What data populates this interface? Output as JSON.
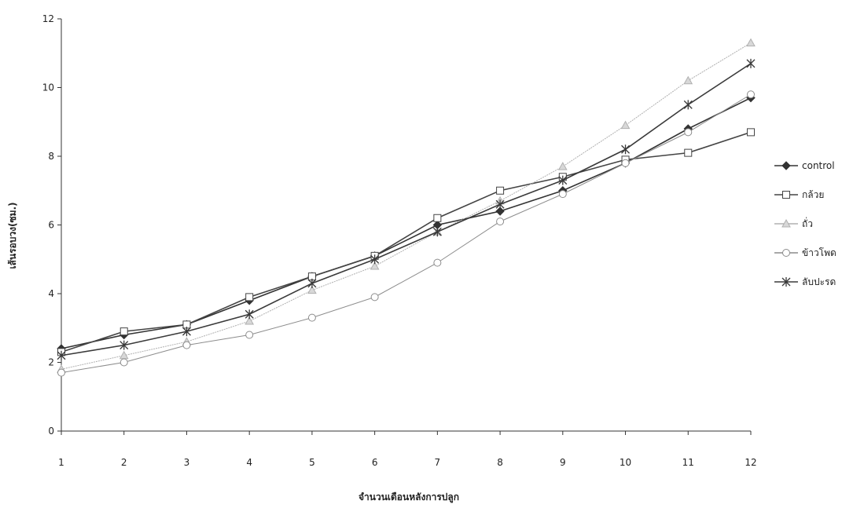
{
  "chart_data": {
    "type": "line",
    "xlabel": "จำนวนเดือนหลังการปลูก",
    "ylabel": "เส้นรอบวง(ซม.)",
    "categories": [
      "1",
      "2",
      "3",
      "4",
      "5",
      "6",
      "7",
      "8",
      "9",
      "10",
      "11",
      "12"
    ],
    "ylim": [
      0,
      12
    ],
    "yticks": [
      0,
      2,
      4,
      6,
      8,
      10,
      12
    ],
    "grid": false,
    "legend_position": "right",
    "series": [
      {
        "name": "control",
        "marker": "diamond-filled",
        "color": "#333333",
        "values": [
          2.4,
          2.8,
          3.1,
          3.8,
          4.5,
          5.1,
          6.0,
          6.4,
          7.0,
          7.8,
          8.8,
          9.7
        ]
      },
      {
        "name": "กล้วย",
        "marker": "square-open",
        "color": "#444444",
        "values": [
          2.3,
          2.9,
          3.1,
          3.9,
          4.5,
          5.1,
          6.2,
          7.0,
          7.4,
          7.9,
          8.1,
          8.7
        ]
      },
      {
        "name": "ถั่ว",
        "marker": "triangle",
        "color": "#b0b0b0",
        "values": [
          1.8,
          2.2,
          2.6,
          3.2,
          4.1,
          4.8,
          5.8,
          6.7,
          7.7,
          8.9,
          10.2,
          11.3
        ]
      },
      {
        "name": "ข้าวโพด",
        "marker": "circle-open",
        "color": "#8c8c8c",
        "values": [
          1.7,
          2.0,
          2.5,
          2.8,
          3.3,
          3.9,
          4.9,
          6.1,
          6.9,
          7.8,
          8.7,
          9.8
        ]
      },
      {
        "name": "ลับปะรด",
        "marker": "asterisk",
        "color": "#3a3a3a",
        "values": [
          2.2,
          2.5,
          2.9,
          3.4,
          4.3,
          5.0,
          5.8,
          6.6,
          7.3,
          8.2,
          9.5,
          10.7
        ]
      }
    ]
  }
}
